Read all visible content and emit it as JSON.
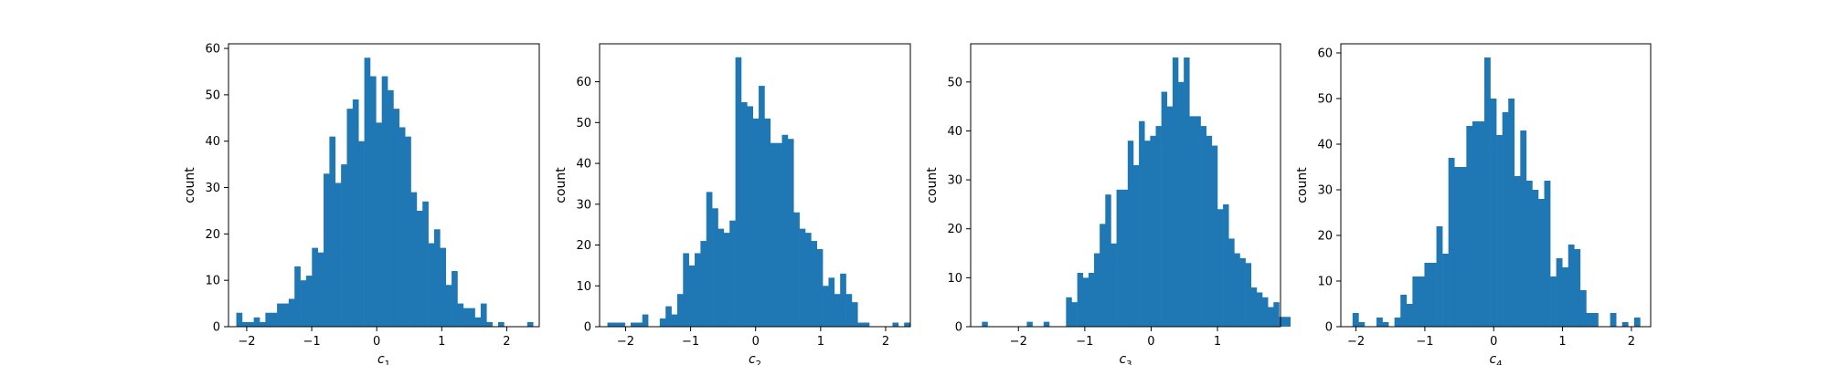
{
  "chart_data": [
    {
      "type": "bar",
      "xlabel": "c",
      "xlabel_sub": "1",
      "ylabel": "count",
      "xlim": [
        -2.28,
        2.5
      ],
      "ylim": [
        0,
        61
      ],
      "xticks": [
        -2,
        -1,
        0,
        1,
        2
      ],
      "yticks": [
        0,
        10,
        20,
        30,
        40,
        50,
        60
      ],
      "bin_start": -2.16,
      "bin_width": 0.0895,
      "counts": [
        3,
        1,
        1,
        2,
        1,
        3,
        3,
        5,
        5,
        6,
        13,
        10,
        11,
        17,
        16,
        33,
        41,
        31,
        35,
        47,
        49,
        40,
        58,
        54,
        44,
        54,
        51,
        47,
        43,
        41,
        29,
        25,
        27,
        18,
        21,
        17,
        9,
        12,
        5,
        4,
        4,
        2,
        5,
        1,
        0,
        1,
        0,
        0,
        0,
        0,
        1
      ]
    },
    {
      "type": "bar",
      "xlabel": "c",
      "xlabel_sub": "2",
      "ylabel": "count",
      "xlim": [
        -2.4,
        2.38
      ],
      "ylim": [
        0,
        69.3
      ],
      "xticks": [
        -2,
        -1,
        0,
        1,
        2
      ],
      "yticks": [
        0,
        10,
        20,
        30,
        40,
        50,
        60
      ],
      "bin_start": -2.28,
      "bin_width": 0.0895,
      "counts": [
        1,
        1,
        1,
        0,
        1,
        1,
        3,
        0,
        0,
        2,
        5,
        3,
        8,
        18,
        15,
        18,
        21,
        33,
        29,
        24,
        23,
        26,
        66,
        55,
        54,
        51,
        59,
        51,
        45,
        45,
        47,
        46,
        28,
        24,
        23,
        21,
        19,
        10,
        12,
        8,
        13,
        8,
        6,
        1,
        1,
        0,
        0,
        0,
        0,
        1,
        0,
        1
      ]
    },
    {
      "type": "bar",
      "xlabel": "c",
      "xlabel_sub": "3",
      "ylabel": "count",
      "xlim": [
        -2.72,
        1.95
      ],
      "ylim": [
        0,
        57.8
      ],
      "xticks": [
        -2,
        -1,
        0,
        1
      ],
      "yticks": [
        0,
        10,
        20,
        30,
        40,
        50
      ],
      "bin_start": -2.55,
      "bin_width": 0.0845,
      "counts": [
        1,
        0,
        0,
        0,
        0,
        0,
        0,
        0,
        1,
        0,
        0,
        1,
        0,
        0,
        0,
        6,
        5,
        11,
        10,
        11,
        15,
        21,
        27,
        17,
        28,
        28,
        38,
        33,
        42,
        38,
        39,
        41,
        48,
        45,
        55,
        50,
        55,
        43,
        43,
        41,
        39,
        37,
        24,
        25,
        18,
        15,
        14,
        13,
        8,
        7,
        6,
        4,
        5,
        2,
        2
      ]
    },
    {
      "type": "bar",
      "xlabel": "c",
      "xlabel_sub": "4",
      "ylabel": "count",
      "xlim": [
        -2.22,
        2.28
      ],
      "ylim": [
        0,
        62
      ],
      "xticks": [
        -2,
        -1,
        0,
        1,
        2
      ],
      "yticks": [
        0,
        10,
        20,
        30,
        40,
        50,
        60
      ],
      "bin_start": -2.05,
      "bin_width": 0.087,
      "counts": [
        3,
        1,
        0,
        0,
        2,
        1,
        0,
        2,
        7,
        5,
        11,
        11,
        14,
        14,
        22,
        16,
        37,
        35,
        35,
        44,
        45,
        45,
        59,
        50,
        42,
        47,
        50,
        33,
        43,
        32,
        30,
        28,
        32,
        11,
        15,
        13,
        18,
        17,
        8,
        3,
        3,
        0,
        0,
        3,
        0,
        1,
        0,
        2
      ]
    }
  ]
}
